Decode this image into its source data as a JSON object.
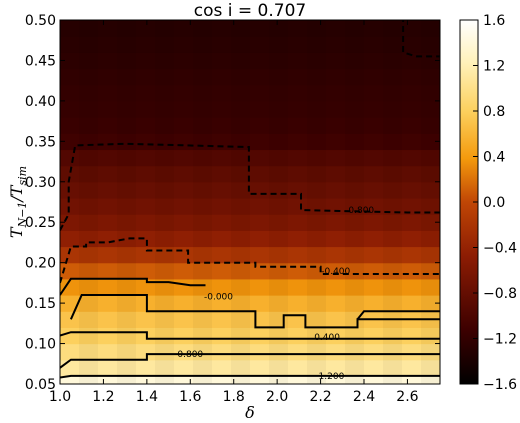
{
  "chart_data": {
    "type": "heatmap",
    "title": "cos i = 0.707",
    "xlabel": "δ",
    "ylabel_main": "T",
    "ylabel_sub1": "N−1",
    "ylabel_mid": "/T",
    "ylabel_sub2": "sim",
    "xlim": [
      1.0,
      2.75
    ],
    "ylim": [
      0.05,
      0.5
    ],
    "x_ticks": [
      "1.0",
      "1.2",
      "1.4",
      "1.6",
      "1.8",
      "2.0",
      "2.2",
      "2.4",
      "2.6"
    ],
    "y_ticks": [
      "0.05",
      "0.10",
      "0.15",
      "0.20",
      "0.25",
      "0.30",
      "0.35",
      "0.40",
      "0.45",
      "0.50"
    ],
    "colorbar": {
      "min": -1.6,
      "max": 1.6,
      "ticks": [
        "1.6",
        "1.2",
        "0.8",
        "0.4",
        "0.0",
        "−0.4",
        "−0.8",
        "−1.2",
        "−1.6"
      ]
    },
    "y_bins": [
      0.05,
      0.06,
      0.08,
      0.1,
      0.12,
      0.14,
      0.16,
      0.18,
      0.2,
      0.22,
      0.24,
      0.26,
      0.28,
      0.3,
      0.32,
      0.34,
      0.36,
      0.38,
      0.4,
      0.42,
      0.44,
      0.46,
      0.48,
      0.5
    ],
    "row_values": [
      1.4,
      1.1,
      0.95,
      0.8,
      0.7,
      0.55,
      0.35,
      0.1,
      -0.2,
      -0.45,
      -0.6,
      -0.7,
      -0.78,
      -0.85,
      -0.95,
      -1.1,
      -1.15,
      -1.18,
      -1.2,
      -1.22,
      -1.25,
      -1.28,
      -1.3
    ],
    "contours": [
      {
        "label": "1.200",
        "style": "solid",
        "points": [
          [
            1.0,
            0.058
          ],
          [
            1.05,
            0.06
          ],
          [
            2.75,
            0.06
          ]
        ],
        "label_pos": [
          2.25,
          0.06
        ]
      },
      {
        "label": "0.800",
        "style": "solid",
        "points": [
          [
            1.0,
            0.07
          ],
          [
            1.05,
            0.08
          ],
          [
            1.4,
            0.08
          ],
          [
            1.4,
            0.087
          ],
          [
            2.75,
            0.087
          ]
        ],
        "label_pos": [
          1.6,
          0.087
        ]
      },
      {
        "label": "0.400",
        "style": "solid",
        "points": [
          [
            1.0,
            0.11
          ],
          [
            1.05,
            0.114
          ],
          [
            1.4,
            0.114
          ],
          [
            1.4,
            0.106
          ],
          [
            2.75,
            0.106
          ]
        ],
        "label_pos": [
          2.23,
          0.108
        ]
      },
      {
        "label": "",
        "style": "solid",
        "points": [
          [
            1.05,
            0.13
          ],
          [
            1.1,
            0.16
          ],
          [
            1.4,
            0.16
          ],
          [
            1.4,
            0.14
          ],
          [
            1.9,
            0.14
          ],
          [
            1.9,
            0.12
          ],
          [
            2.03,
            0.12
          ],
          [
            2.03,
            0.135
          ],
          [
            2.13,
            0.135
          ],
          [
            2.13,
            0.12
          ],
          [
            2.2,
            0.12
          ],
          [
            2.37,
            0.12
          ],
          [
            2.37,
            0.13
          ],
          [
            2.75,
            0.13
          ]
        ]
      },
      {
        "label": "0.400",
        "style": "solid",
        "points": [
          [
            2.37,
            0.13
          ],
          [
            2.4,
            0.14
          ],
          [
            2.75,
            0.14
          ]
        ],
        "label_pos": [
          2.23,
          0.108
        ]
      },
      {
        "label": "-0.000",
        "style": "solid",
        "points": [
          [
            1.0,
            0.16
          ],
          [
            1.05,
            0.18
          ],
          [
            1.4,
            0.18
          ],
          [
            1.4,
            0.176
          ],
          [
            1.5,
            0.176
          ],
          [
            1.6,
            0.172
          ],
          [
            1.67,
            0.172
          ]
        ],
        "label_pos": [
          1.73,
          0.158
        ]
      },
      {
        "label": "-0.400",
        "style": "dashed",
        "points": [
          [
            1.0,
            0.175
          ],
          [
            1.05,
            0.22
          ],
          [
            1.12,
            0.22
          ],
          [
            1.12,
            0.225
          ],
          [
            1.22,
            0.225
          ],
          [
            1.32,
            0.23
          ],
          [
            1.4,
            0.23
          ],
          [
            1.4,
            0.215
          ],
          [
            1.59,
            0.215
          ],
          [
            1.59,
            0.2
          ],
          [
            1.9,
            0.2
          ],
          [
            1.9,
            0.195
          ],
          [
            2.2,
            0.195
          ],
          [
            2.2,
            0.186
          ],
          [
            2.75,
            0.186
          ]
        ],
        "label_pos": [
          2.27,
          0.19
        ]
      },
      {
        "label": "-0.800",
        "style": "dashed",
        "points": [
          [
            1.0,
            0.24
          ],
          [
            1.04,
            0.26
          ],
          [
            1.04,
            0.3
          ],
          [
            1.07,
            0.345
          ],
          [
            1.3,
            0.347
          ],
          [
            1.87,
            0.343
          ],
          [
            1.87,
            0.285
          ],
          [
            2.11,
            0.285
          ],
          [
            2.11,
            0.265
          ],
          [
            2.6,
            0.262
          ],
          [
            2.75,
            0.262
          ]
        ],
        "label_pos": [
          2.38,
          0.265
        ]
      },
      {
        "label": "",
        "style": "dashed",
        "points": [
          [
            2.58,
            0.505
          ],
          [
            2.58,
            0.48
          ],
          [
            2.58,
            0.46
          ],
          [
            2.64,
            0.455
          ],
          [
            2.75,
            0.455
          ]
        ]
      }
    ]
  }
}
